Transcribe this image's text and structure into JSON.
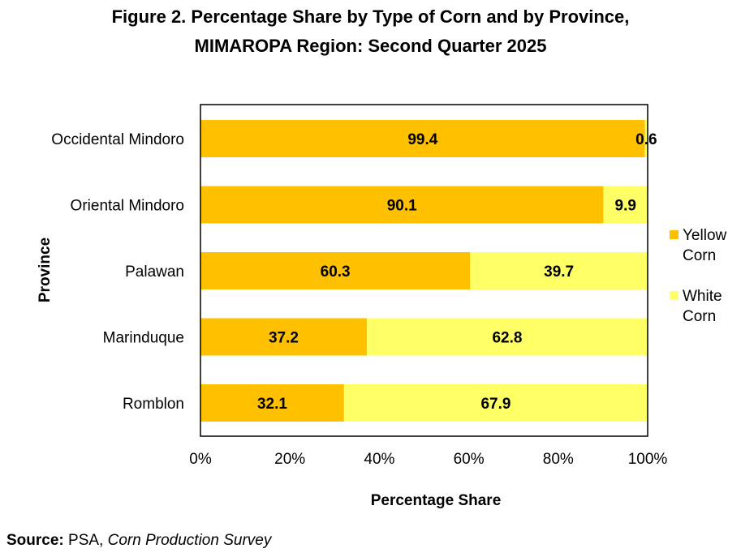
{
  "title_line1": "Figure 2. Percentage Share by Type of Corn and by Province,",
  "title_line2": "MIMAROPA Region: Second Quarter 2025",
  "source": {
    "label": "Source:",
    "agency": "PSA,",
    "survey": "Corn Production Survey"
  },
  "chart_data": {
    "type": "bar",
    "orientation": "horizontal",
    "stacked": true,
    "categories": [
      "Occidental Mindoro",
      "Oriental Mindoro",
      "Palawan",
      "Marinduque",
      "Romblon"
    ],
    "series": [
      {
        "name": "Yellow Corn",
        "color": "#FFC000",
        "values": [
          99.4,
          90.1,
          60.3,
          37.2,
          32.1
        ],
        "labels": [
          "99.4",
          "90.1",
          "60.3",
          "37.2",
          "32.1"
        ]
      },
      {
        "name": "White Corn",
        "color": "#FFFF66",
        "values": [
          0.6,
          9.9,
          39.7,
          62.8,
          67.9
        ],
        "labels": [
          "0.6",
          "9.9",
          "39.7",
          "62.8",
          "67.9"
        ]
      }
    ],
    "legend": {
      "position": "right",
      "entries": [
        {
          "line1": "Yellow",
          "line2": "Corn",
          "color": "#FFC000"
        },
        {
          "line1": "White",
          "line2": "Corn",
          "color": "#FFFF66"
        }
      ]
    },
    "xlabel": "Percentage Share",
    "ylabel": "Province",
    "xlim": [
      0,
      100
    ],
    "xticks": [
      "0%",
      "20%",
      "40%",
      "60%",
      "80%",
      "100%"
    ],
    "xtick_values": [
      0,
      20,
      40,
      60,
      80,
      100
    ],
    "grid": false
  }
}
